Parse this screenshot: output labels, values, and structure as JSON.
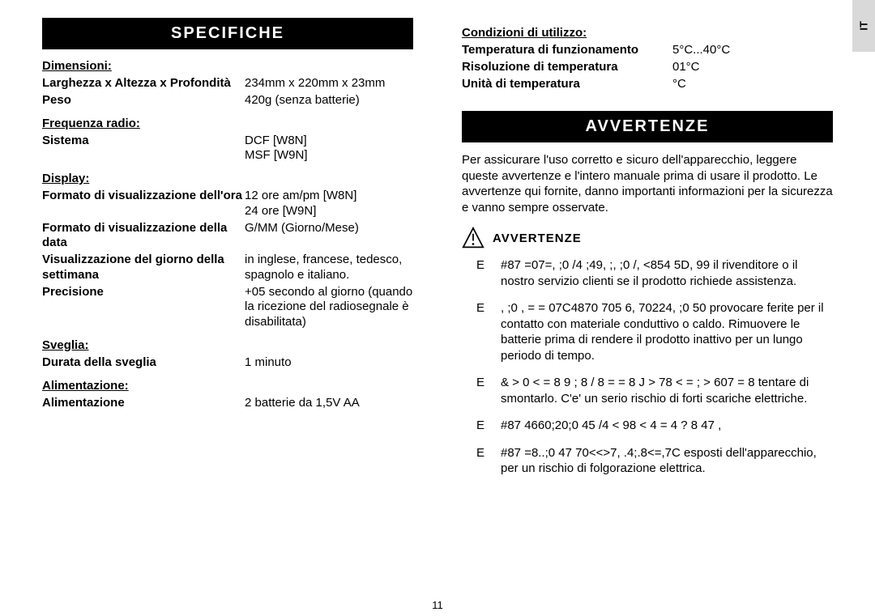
{
  "lang_tab": "IT",
  "page_number": "11",
  "left": {
    "header": "SPECIFICHE",
    "groups": [
      {
        "title": "Dimensioni:",
        "rows": [
          {
            "label": "Larghezza x Altezza x Profondità",
            "value": "234mm x 220mm x 23mm"
          },
          {
            "label": "Peso",
            "value": "420g (senza batterie)"
          }
        ]
      },
      {
        "title": "Frequenza radio:",
        "rows": [
          {
            "label": "Sistema",
            "value": "DCF [W8N]\nMSF [W9N]"
          }
        ]
      },
      {
        "title": "Display:",
        "rows": [
          {
            "label": "Formato di visualizzazione dell'ora",
            "value": "12 ore am/pm [W8N]\n24 ore [W9N]"
          },
          {
            "label": "Formato di visualizzazione della data",
            "value": "G/MM (Giorno/Mese)"
          },
          {
            "label": "Visualizzazione del giorno della settimana",
            "value": "in inglese, francese, tedesco, spagnolo e italiano."
          },
          {
            "label": "Precisione",
            "value": "+05 secondo al giorno (quando la ricezione del radiosegnale è disabilitata)"
          }
        ]
      },
      {
        "title": "Sveglia:",
        "rows": [
          {
            "label": "Durata della sveglia",
            "value": "1 minuto"
          }
        ]
      },
      {
        "title": "Alimentazione:",
        "rows": [
          {
            "label": "Alimentazione",
            "value": "2 batterie da 1,5V AA"
          }
        ]
      }
    ]
  },
  "right": {
    "usage_group": {
      "title": "Condizioni di utilizzo:",
      "rows": [
        {
          "label": "Temperatura di funzionamento",
          "value": "5°C...40°C"
        },
        {
          "label": "Risoluzione di temperatura",
          "value": "01°C"
        },
        {
          "label": "Unità di temperatura",
          "value": "°C"
        }
      ]
    },
    "warn_header": "AVVERTENZE",
    "warn_intro": "Per assicurare l'uso corretto e sicuro dell'apparecchio, leggere queste avvertenze e l'intero manuale prima di usare il prodotto. Le avvertenze qui fornite, danno importanti informazioni per la sicurezza e vanno sempre osservate.",
    "warn_title": "AVVERTENZE",
    "warn_items": [
      "#87 =07=, ;0 /4 ;49, ;, ;0 /, <854 5D, 99 il rivenditore o il nostro servizio clienti se il prodotto richiede assistenza.",
      ", ;0 , = = 07C4870 705 6, 70224, ;0 50 provocare ferite per il contatto con materiale conduttivo o caldo. Rimuovere le batterie prima di rendere il prodotto inattivo per un lungo periodo di tempo.",
      "& > 0 < = 8 9 ; 8 / 8 = = 8 J > 78 < = ; > 607 = 8 tentare di smontarlo. C'e' un serio rischio di forti scariche elettriche.",
      "#87 4660;20;0 45 /4 < 98 < 4 = 4 ? 8 47 ,",
      "#87 =8..;0 47 70<<>7, .4;.8<=,7C esposti dell'apparecchio, per un rischio di folgorazione elettrica."
    ]
  },
  "style": {
    "header_bg": "#000000",
    "header_fg": "#ffffff",
    "body_fg": "#000000",
    "lang_tab_bg": "#d9d9d9",
    "font_size_body": 15,
    "font_size_header": 20
  }
}
